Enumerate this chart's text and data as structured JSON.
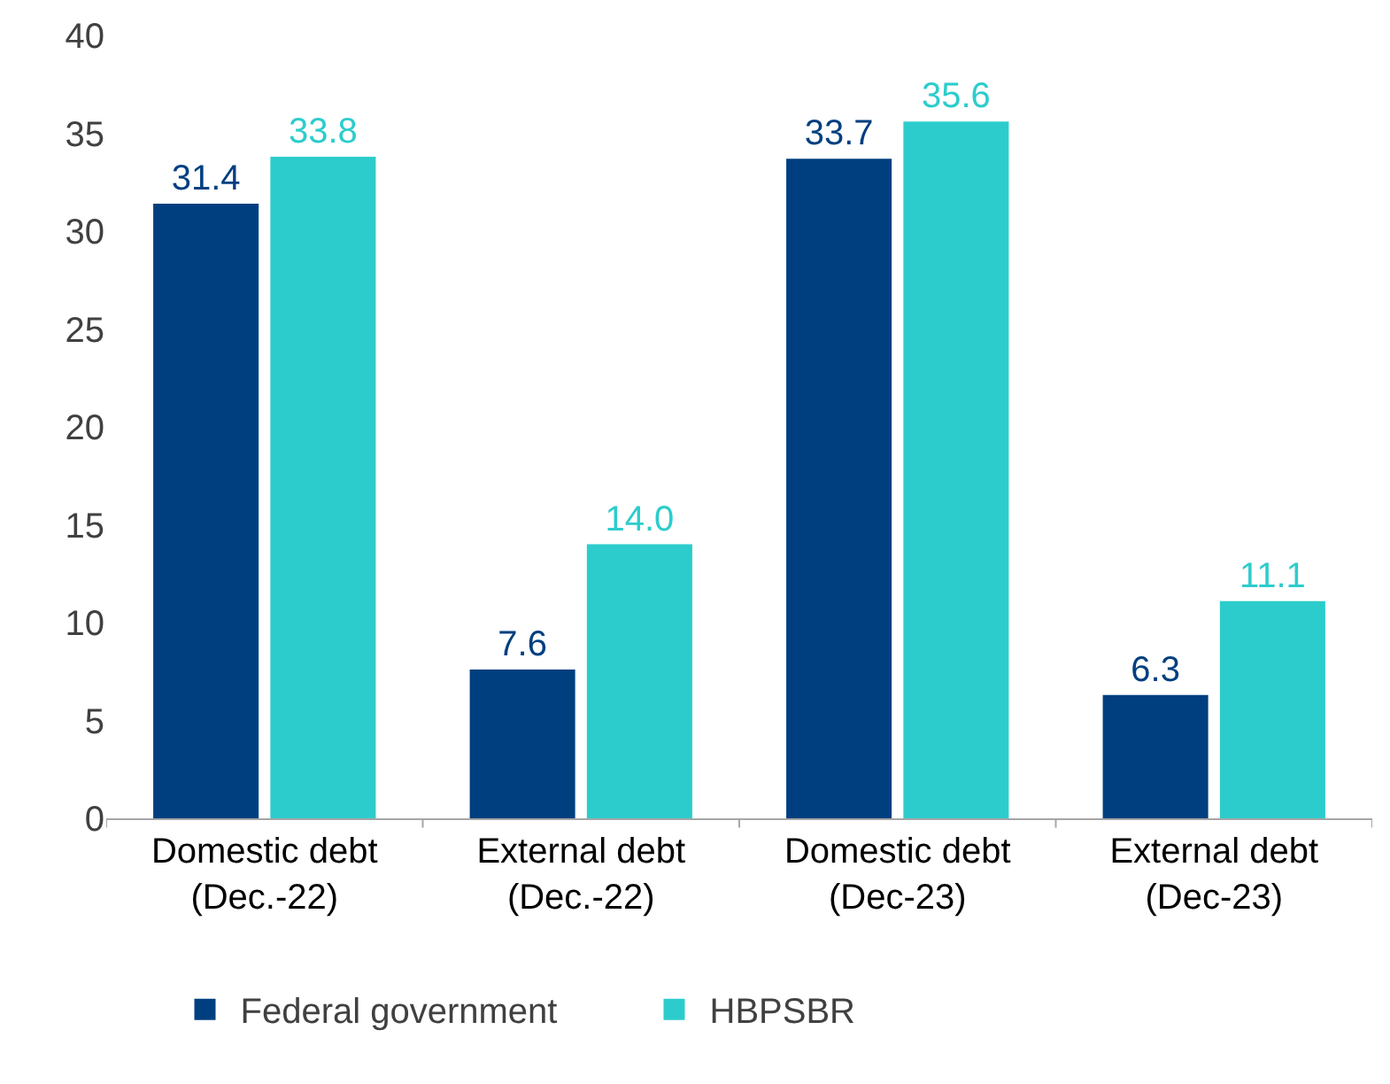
{
  "chart_data": {
    "type": "bar",
    "categories": [
      "Domestic debt\n(Dec.-22)",
      "External debt\n(Dec.-22)",
      "Domestic debt\n(Dec-23)",
      "External debt\n(Dec-23)"
    ],
    "series": [
      {
        "name": "Federal government",
        "color": "#003f7f",
        "values": [
          31.4,
          7.6,
          33.7,
          6.3
        ],
        "value_labels": [
          "31.4",
          "7.6",
          "33.7",
          "6.3"
        ]
      },
      {
        "name": "HBPSBR",
        "color": "#2dcccc",
        "values": [
          33.8,
          14.0,
          35.6,
          11.1
        ],
        "value_labels": [
          "33.8",
          "14.0",
          "35.6",
          "11.1"
        ]
      }
    ],
    "ylim": [
      0,
      40
    ],
    "yticks": [
      0,
      5,
      10,
      15,
      20,
      25,
      30,
      35,
      40
    ],
    "legend": "bottom"
  }
}
